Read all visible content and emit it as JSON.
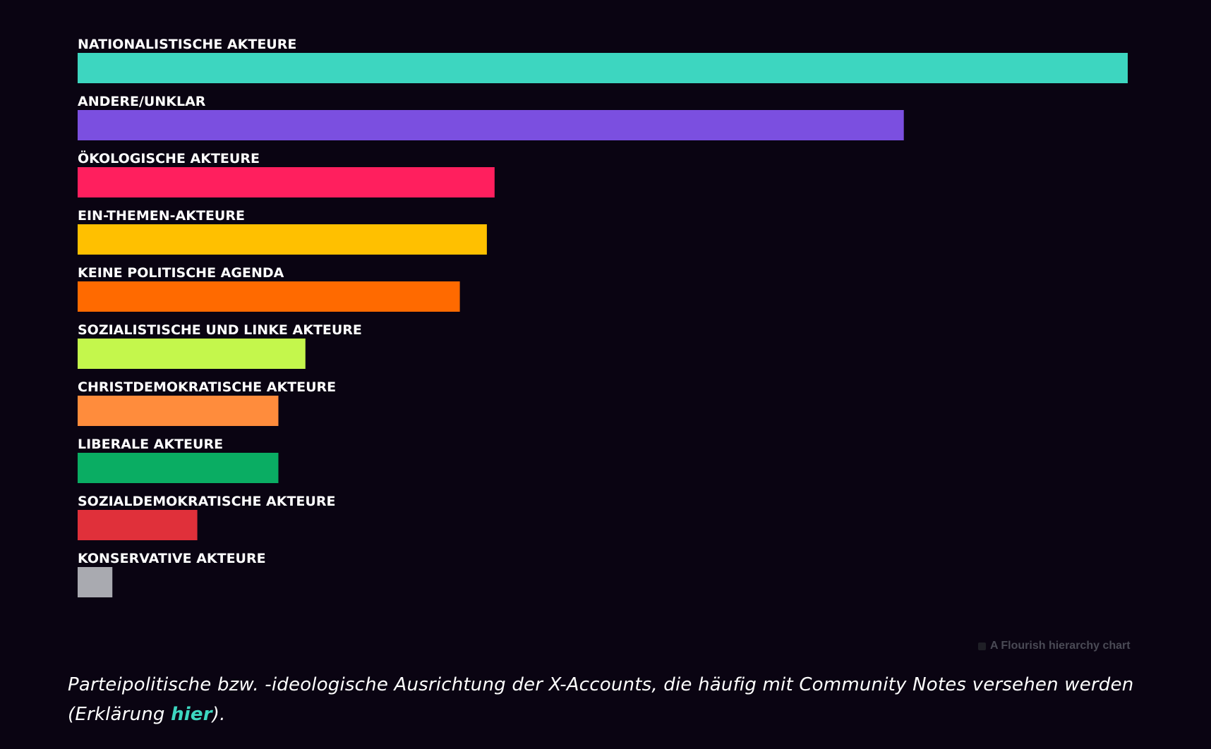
{
  "chart_data": {
    "type": "bar",
    "orientation": "horizontal",
    "categories": [
      "NATIONALISTISCHE AKTEURE",
      "ANDERE/UNKLAR",
      "ÖKOLOGISCHE AKTEURE",
      "EIN-THEMEN-AKTEURE",
      "KEINE POLITISCHE AGENDA",
      "SOZIALISTISCHE UND LINKE AKTEURE",
      "CHRISTDEMOKRATISCHE AKTEURE",
      "LIBERALE AKTEURE",
      "SOZIALDEMOKRATISCHE AKTEURE",
      "KONSERVATIVE AKTEURE"
    ],
    "values": [
      136,
      107,
      54,
      53,
      49.5,
      29.5,
      26,
      26,
      15.5,
      4.5
    ],
    "colors": [
      "#3dd6c0",
      "#7b4fe0",
      "#ff1f5e",
      "#ffc000",
      "#ff6a00",
      "#c4f74c",
      "#ff8c3c",
      "#0aad63",
      "#e0303a",
      "#a9aab0"
    ],
    "xlim": [
      0,
      136
    ],
    "title": "",
    "xlabel": "",
    "ylabel": ""
  },
  "credit": {
    "text": "A Flourish hierarchy chart"
  },
  "caption": {
    "text_before": "Parteipolitische bzw. -ideologische Ausrichtung der X-Accounts, die häufig mit Community Notes versehen werden (Erklärung ",
    "link_text": "hier",
    "text_after": ")."
  }
}
